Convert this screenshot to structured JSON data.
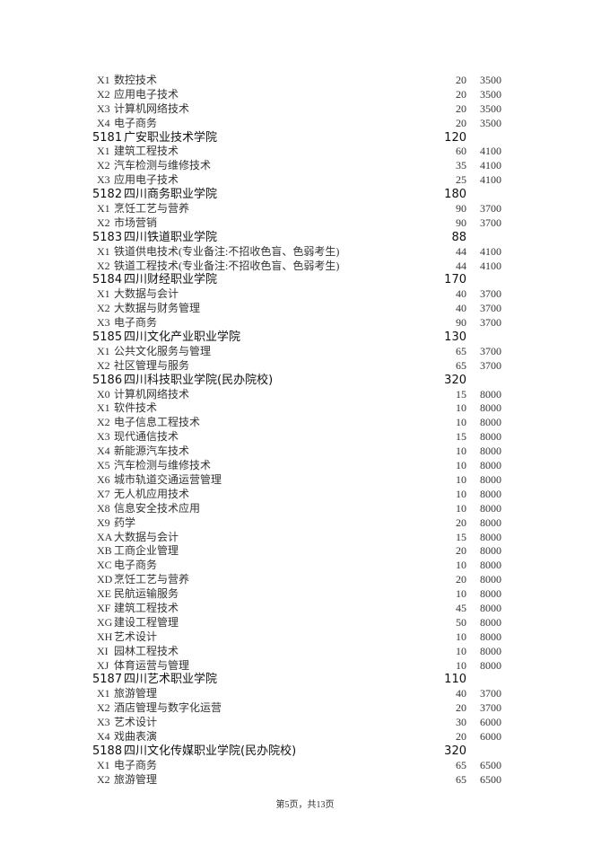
{
  "rows": [
    {
      "type": "major",
      "code": "X1",
      "name": "数控技术",
      "count": "20",
      "fee": "3500"
    },
    {
      "type": "major",
      "code": "X2",
      "name": "应用电子技术",
      "count": "20",
      "fee": "3500"
    },
    {
      "type": "major",
      "code": "X3",
      "name": "计算机网络技术",
      "count": "20",
      "fee": "3500"
    },
    {
      "type": "major",
      "code": "X4",
      "name": "电子商务",
      "count": "20",
      "fee": "3500"
    },
    {
      "type": "school",
      "code": "5181",
      "name": "广安职业技术学院",
      "count": "120"
    },
    {
      "type": "major",
      "code": "X1",
      "name": "建筑工程技术",
      "count": "60",
      "fee": "4100"
    },
    {
      "type": "major",
      "code": "X2",
      "name": "汽车检测与维修技术",
      "count": "35",
      "fee": "4100"
    },
    {
      "type": "major",
      "code": "X3",
      "name": "应用电子技术",
      "count": "25",
      "fee": "4100"
    },
    {
      "type": "school",
      "code": "5182",
      "name": "四川商务职业学院",
      "count": "180"
    },
    {
      "type": "major",
      "code": "X1",
      "name": "烹饪工艺与营养",
      "count": "90",
      "fee": "3700"
    },
    {
      "type": "major",
      "code": "X2",
      "name": "市场营销",
      "count": "90",
      "fee": "3700"
    },
    {
      "type": "school",
      "code": "5183",
      "name": "四川铁道职业学院",
      "count": "88"
    },
    {
      "type": "major",
      "code": "X1",
      "name": "铁道供电技术(专业备注:不招收色盲、色弱考生)",
      "count": "44",
      "fee": "4100"
    },
    {
      "type": "major",
      "code": "X2",
      "name": "铁道工程技术(专业备注:不招收色盲、色弱考生)",
      "count": "44",
      "fee": "4100"
    },
    {
      "type": "school",
      "code": "5184",
      "name": "四川财经职业学院",
      "count": "170"
    },
    {
      "type": "major",
      "code": "X1",
      "name": "大数据与会计",
      "count": "40",
      "fee": "3700"
    },
    {
      "type": "major",
      "code": "X2",
      "name": "大数据与财务管理",
      "count": "40",
      "fee": "3700"
    },
    {
      "type": "major",
      "code": "X3",
      "name": "电子商务",
      "count": "90",
      "fee": "3700"
    },
    {
      "type": "school",
      "code": "5185",
      "name": "四川文化产业职业学院",
      "count": "130"
    },
    {
      "type": "major",
      "code": "X1",
      "name": "公共文化服务与管理",
      "count": "65",
      "fee": "3700"
    },
    {
      "type": "major",
      "code": "X2",
      "name": "社区管理与服务",
      "count": "65",
      "fee": "3700"
    },
    {
      "type": "school",
      "code": "5186",
      "name": "四川科技职业学院(民办院校)",
      "count": "320"
    },
    {
      "type": "major",
      "code": "X0",
      "name": "计算机网络技术",
      "count": "15",
      "fee": "8000"
    },
    {
      "type": "major",
      "code": "X1",
      "name": "软件技术",
      "count": "10",
      "fee": "8000"
    },
    {
      "type": "major",
      "code": "X2",
      "name": "电子信息工程技术",
      "count": "10",
      "fee": "8000"
    },
    {
      "type": "major",
      "code": "X3",
      "name": "现代通信技术",
      "count": "15",
      "fee": "8000"
    },
    {
      "type": "major",
      "code": "X4",
      "name": "新能源汽车技术",
      "count": "10",
      "fee": "8000"
    },
    {
      "type": "major",
      "code": "X5",
      "name": "汽车检测与维修技术",
      "count": "10",
      "fee": "8000"
    },
    {
      "type": "major",
      "code": "X6",
      "name": "城市轨道交通运营管理",
      "count": "10",
      "fee": "8000"
    },
    {
      "type": "major",
      "code": "X7",
      "name": "无人机应用技术",
      "count": "10",
      "fee": "8000"
    },
    {
      "type": "major",
      "code": "X8",
      "name": "信息安全技术应用",
      "count": "10",
      "fee": "8000"
    },
    {
      "type": "major",
      "code": "X9",
      "name": "药学",
      "count": "20",
      "fee": "8000"
    },
    {
      "type": "major",
      "code": "XA",
      "name": "大数据与会计",
      "count": "15",
      "fee": "8000"
    },
    {
      "type": "major",
      "code": "XB",
      "name": "工商企业管理",
      "count": "20",
      "fee": "8000"
    },
    {
      "type": "major",
      "code": "XC",
      "name": "电子商务",
      "count": "10",
      "fee": "8000"
    },
    {
      "type": "major",
      "code": "XD",
      "name": "烹饪工艺与营养",
      "count": "20",
      "fee": "8000"
    },
    {
      "type": "major",
      "code": "XE",
      "name": "民航运输服务",
      "count": "10",
      "fee": "8000"
    },
    {
      "type": "major",
      "code": "XF",
      "name": "建筑工程技术",
      "count": "45",
      "fee": "8000"
    },
    {
      "type": "major",
      "code": "XG",
      "name": "建设工程管理",
      "count": "50",
      "fee": "8000"
    },
    {
      "type": "major",
      "code": "XH",
      "name": "艺术设计",
      "count": "10",
      "fee": "8000"
    },
    {
      "type": "major",
      "code": "XI",
      "name": "园林工程技术",
      "count": "10",
      "fee": "8000"
    },
    {
      "type": "major",
      "code": "XJ",
      "name": "体育运营与管理",
      "count": "10",
      "fee": "8000"
    },
    {
      "type": "school",
      "code": "5187",
      "name": "四川艺术职业学院",
      "count": "110"
    },
    {
      "type": "major",
      "code": "X1",
      "name": "旅游管理",
      "count": "40",
      "fee": "3700"
    },
    {
      "type": "major",
      "code": "X2",
      "name": "酒店管理与数字化运营",
      "count": "20",
      "fee": "3700"
    },
    {
      "type": "major",
      "code": "X3",
      "name": "艺术设计",
      "count": "30",
      "fee": "6000"
    },
    {
      "type": "major",
      "code": "X4",
      "name": "戏曲表演",
      "count": "20",
      "fee": "6000"
    },
    {
      "type": "school",
      "code": "5188",
      "name": "四川文化传媒职业学院(民办院校)",
      "count": "320"
    },
    {
      "type": "major",
      "code": "X1",
      "name": "电子商务",
      "count": "65",
      "fee": "6500"
    },
    {
      "type": "major",
      "code": "X2",
      "name": "旅游管理",
      "count": "65",
      "fee": "6500"
    }
  ],
  "footer": {
    "page_label": "第5页，共13页"
  }
}
